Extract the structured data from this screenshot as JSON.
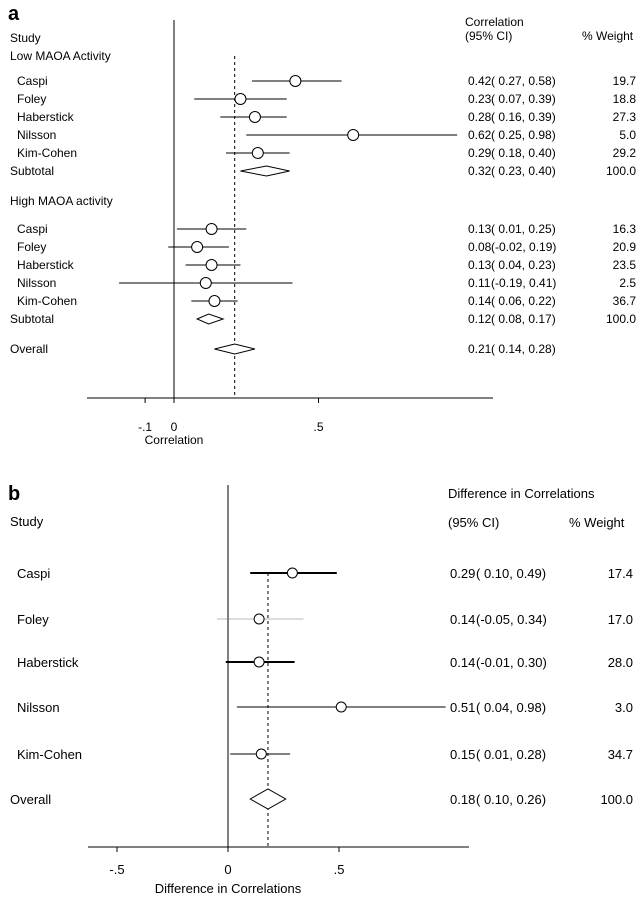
{
  "chart_data": [
    {
      "type": "forest",
      "panel_label": "a",
      "header": {
        "study": "Study",
        "effect_label": "Correlation",
        "ci_label": "(95% CI)",
        "weight_label": "% Weight"
      },
      "groups": [
        {
          "name": "Low MAOA Activity",
          "studies": [
            {
              "label": "Caspi",
              "est": 0.42,
              "lo": 0.27,
              "hi": 0.58,
              "est_text": "0.42",
              "ci_text": "( 0.27, 0.58)",
              "weight": "19.7"
            },
            {
              "label": "Foley",
              "est": 0.23,
              "lo": 0.07,
              "hi": 0.39,
              "est_text": "0.23",
              "ci_text": "( 0.07, 0.39)",
              "weight": "18.8"
            },
            {
              "label": "Haberstick",
              "est": 0.28,
              "lo": 0.16,
              "hi": 0.39,
              "est_text": "0.28",
              "ci_text": "( 0.16, 0.39)",
              "weight": "27.3"
            },
            {
              "label": "Nilsson",
              "est": 0.62,
              "lo": 0.25,
              "hi": 0.98,
              "est_text": "0.62",
              "ci_text": "( 0.25, 0.98)",
              "weight": "5.0"
            },
            {
              "label": "Kim-Cohen",
              "est": 0.29,
              "lo": 0.18,
              "hi": 0.4,
              "est_text": "0.29",
              "ci_text": "( 0.18, 0.40)",
              "weight": "29.2"
            }
          ],
          "subtotal": {
            "label": "Subtotal",
            "est": 0.32,
            "lo": 0.23,
            "hi": 0.4,
            "est_text": "0.32",
            "ci_text": "( 0.23, 0.40)",
            "weight": "100.0"
          }
        },
        {
          "name": "High MAOA activity",
          "studies": [
            {
              "label": "Caspi",
              "est": 0.13,
              "lo": 0.01,
              "hi": 0.25,
              "est_text": "0.13",
              "ci_text": "( 0.01, 0.25)",
              "weight": "16.3"
            },
            {
              "label": "Foley",
              "est": 0.08,
              "lo": -0.02,
              "hi": 0.19,
              "est_text": "0.08",
              "ci_text": "(-0.02, 0.19)",
              "weight": "20.9"
            },
            {
              "label": "Haberstick",
              "est": 0.13,
              "lo": 0.04,
              "hi": 0.23,
              "est_text": "0.13",
              "ci_text": "( 0.04, 0.23)",
              "weight": "23.5"
            },
            {
              "label": "Nilsson",
              "est": 0.11,
              "lo": -0.19,
              "hi": 0.41,
              "est_text": "0.11",
              "ci_text": "(-0.19, 0.41)",
              "weight": "2.5"
            },
            {
              "label": "Kim-Cohen",
              "est": 0.14,
              "lo": 0.06,
              "hi": 0.22,
              "est_text": "0.14",
              "ci_text": "( 0.06, 0.22)",
              "weight": "36.7"
            }
          ],
          "subtotal": {
            "label": "Subtotal",
            "est": 0.12,
            "lo": 0.08,
            "hi": 0.17,
            "est_text": "0.12",
            "ci_text": "( 0.08, 0.17)",
            "weight": "100.0"
          }
        }
      ],
      "overall": {
        "label": "Overall",
        "est": 0.21,
        "lo": 0.14,
        "hi": 0.28,
        "est_text": "0.21",
        "ci_text": "( 0.14, 0.28)",
        "weight": ""
      },
      "reference_line": 0.21,
      "xlim": [
        -0.3,
        1.1
      ],
      "xticks": [
        -0.1,
        0,
        0.5
      ],
      "xtick_labels": [
        "-.1",
        "0",
        ".5"
      ],
      "xlabel": "Correlation"
    },
    {
      "type": "forest",
      "panel_label": "b",
      "header": {
        "study": "Study",
        "effect_label": "Difference in Correlations",
        "ci_label": "(95% CI)",
        "weight_label": "% Weight"
      },
      "studies": [
        {
          "label": "Caspi",
          "est": 0.29,
          "lo": 0.1,
          "hi": 0.49,
          "est_text": "0.29",
          "ci_text": "( 0.10, 0.49)",
          "weight": "17.4"
        },
        {
          "label": "Foley",
          "est": 0.14,
          "lo": -0.05,
          "hi": 0.34,
          "est_text": "0.14",
          "ci_text": "(-0.05, 0.34)",
          "weight": "17.0"
        },
        {
          "label": "Haberstick",
          "est": 0.14,
          "lo": -0.01,
          "hi": 0.3,
          "est_text": "0.14",
          "ci_text": "(-0.01, 0.30)",
          "weight": "28.0"
        },
        {
          "label": "Nilsson",
          "est": 0.51,
          "lo": 0.04,
          "hi": 0.98,
          "est_text": "0.51",
          "ci_text": "( 0.04, 0.98)",
          "weight": "3.0"
        },
        {
          "label": "Kim-Cohen",
          "est": 0.15,
          "lo": 0.01,
          "hi": 0.28,
          "est_text": "0.15",
          "ci_text": "( 0.01, 0.28)",
          "weight": "34.7"
        }
      ],
      "overall": {
        "label": "Overall",
        "est": 0.18,
        "lo": 0.1,
        "hi": 0.26,
        "est_text": "0.18",
        "ci_text": "( 0.10, 0.26)",
        "weight": "100.0"
      },
      "reference_line": 0.18,
      "xlim": [
        -0.63,
        1.1
      ],
      "xticks": [
        -0.5,
        0,
        0.5
      ],
      "xtick_labels": [
        "-.5",
        "0",
        ".5"
      ],
      "xlabel": "Difference in Correlations"
    }
  ]
}
